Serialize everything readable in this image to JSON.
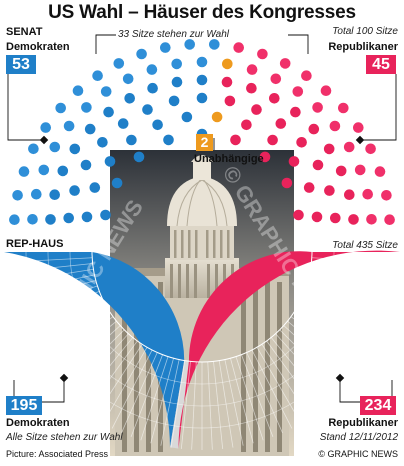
{
  "title": "US Wahl – Häuser des Kongresses",
  "senate": {
    "heading": "SENAT",
    "total_label": "Total 100 Sitze",
    "up_label": "33 Sitze stehen zur Wahl",
    "dem_label": "Demokraten",
    "rep_label": "Republikaner",
    "dem_seats": "53",
    "rep_seats": "45",
    "ind_seats": "2",
    "ind_label": "Unabhängige"
  },
  "house": {
    "heading": "REP-HAUS",
    "total_label": "Total 435 Sitze",
    "dem_label": "Demokraten",
    "rep_label": "Republikaner",
    "dem_seats": "195",
    "rep_seats": "234",
    "all_up_label": "Alle Sitze stehen zur Wahl"
  },
  "credit": "Picture: Associated Press",
  "date": "Stand 12/11/2012",
  "brand": "© GRAPHIC NEWS",
  "watermark_1": "© GRAPHIC NEWS",
  "watermark_2": "© GRAPHIC NEWS",
  "colors": {
    "dem": "#1f7fc8",
    "dem_up": "#2f8fd8",
    "rep": "#e8235b",
    "rep_up": "#f0306a",
    "ind": "#ee9a1e"
  },
  "chart_data": {
    "type": "parliament",
    "senate": {
      "democrats": 53,
      "independents": 2,
      "republicans": 45,
      "total": 100,
      "up_for_election": 33
    },
    "house": {
      "democrats": 195,
      "republicans": 234,
      "total": 435
    }
  }
}
